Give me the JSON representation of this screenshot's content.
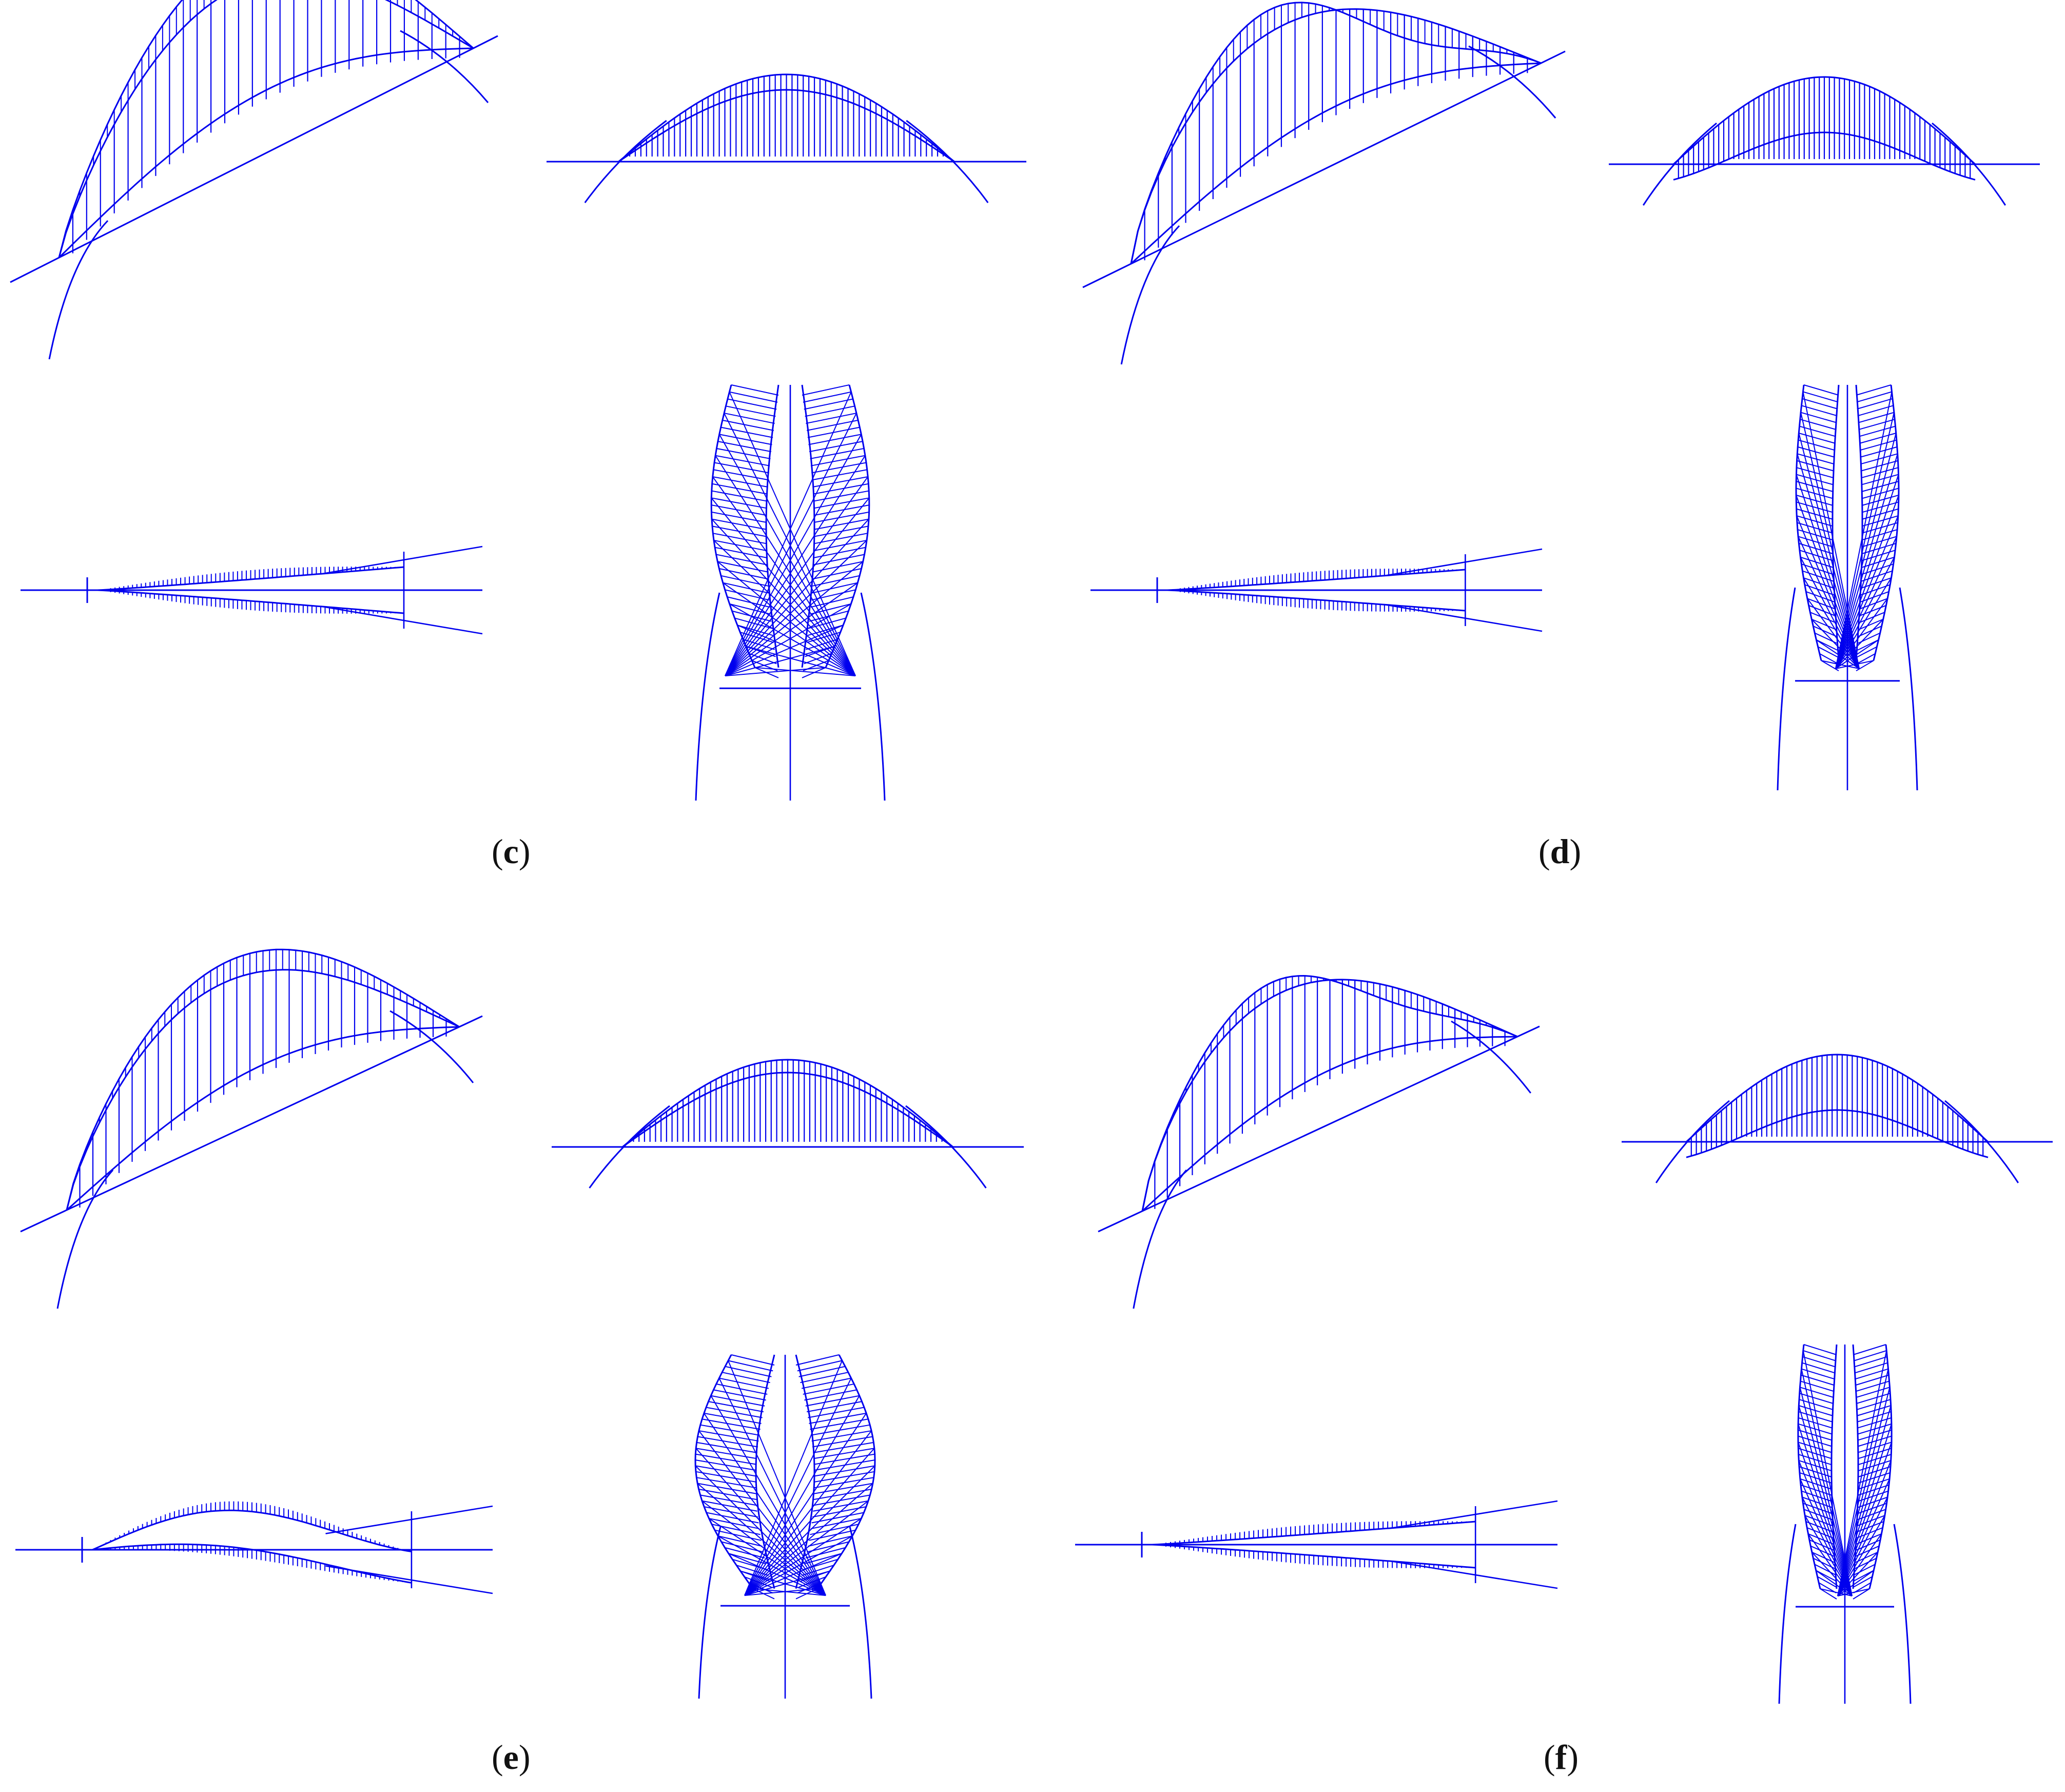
{
  "figure": {
    "stroke_color": "#0000ee",
    "background": "#ffffff",
    "panels": [
      {
        "id": "c",
        "label_letter": "c"
      },
      {
        "id": "d",
        "label_letter": "d"
      },
      {
        "id": "e",
        "label_letter": "e"
      },
      {
        "id": "f",
        "label_letter": "f"
      }
    ]
  },
  "labels": {
    "open": "(",
    "close": ")"
  }
}
